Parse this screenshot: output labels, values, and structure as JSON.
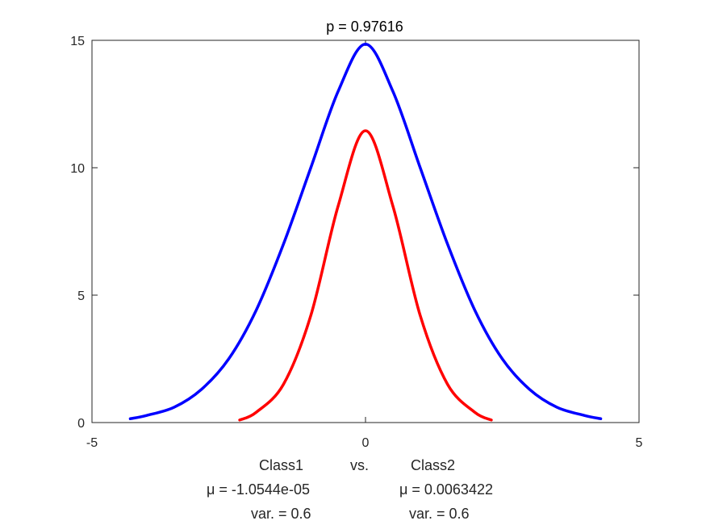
{
  "chart_data": {
    "type": "line",
    "title": "p = 0.97616",
    "xlim": [
      -5,
      5
    ],
    "ylim": [
      0,
      15
    ],
    "xticks": [
      -5,
      0,
      5
    ],
    "yticks": [
      0,
      5,
      10,
      15
    ],
    "grid": false,
    "series": [
      {
        "color": "#0000ff",
        "x": [
          -4.3,
          -4.0,
          -3.5,
          -3.0,
          -2.5,
          -2.0,
          -1.5,
          -1.0,
          -0.5,
          0.0,
          0.5,
          1.0,
          1.5,
          2.0,
          2.5,
          3.0,
          3.5,
          4.0,
          4.3
        ],
        "y": [
          0.15,
          0.28,
          0.6,
          1.3,
          2.5,
          4.4,
          7.0,
          10.0,
          13.0,
          14.85,
          13.0,
          10.0,
          7.0,
          4.4,
          2.5,
          1.3,
          0.6,
          0.28,
          0.15
        ]
      },
      {
        "color": "#ff0000",
        "x": [
          -2.3,
          -2.0,
          -1.5,
          -1.0,
          -0.5,
          0.0,
          0.5,
          1.0,
          1.5,
          2.0,
          2.3
        ],
        "y": [
          0.1,
          0.4,
          1.5,
          4.2,
          8.5,
          11.45,
          8.5,
          4.2,
          1.5,
          0.4,
          0.1
        ]
      }
    ]
  },
  "caption": {
    "class1_label": "Class1",
    "vs_label": "vs.",
    "class2_label": "Class2",
    "class1_mu": "μ = -1.0544e-05",
    "class2_mu": "μ = 0.0063422",
    "class1_var": "var. = 0.6",
    "class2_var": "var. = 0.6"
  }
}
